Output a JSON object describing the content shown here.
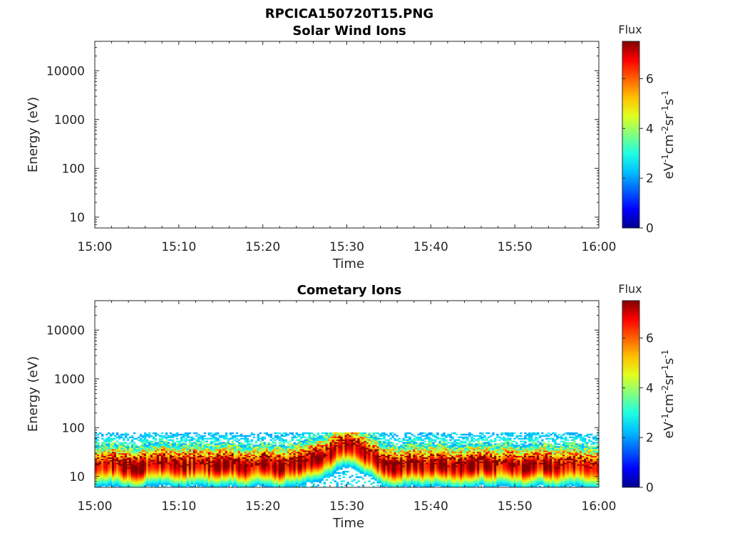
{
  "figure": {
    "title": "RPCICA150720T15.PNG"
  },
  "colormap": [
    "#00008f",
    "#0000ff",
    "#0060ff",
    "#00c0ff",
    "#20ffe0",
    "#80ff80",
    "#e0ff20",
    "#ffc000",
    "#ff6000",
    "#ff0000",
    "#800000"
  ],
  "chart_data": [
    {
      "type": "heatmap",
      "title": "Solar Wind Ions",
      "xlabel": "Time",
      "ylabel": "Energy (eV)",
      "x_ticks": [
        "15:00",
        "15:10",
        "15:20",
        "15:30",
        "15:40",
        "15:50",
        "16:00"
      ],
      "xlim": [
        "15:00",
        "16:00"
      ],
      "y_ticks": [
        "10",
        "100",
        "1000",
        "10000"
      ],
      "y_tick_values": [
        10,
        100,
        1000,
        10000
      ],
      "ylim": [
        6,
        40000
      ],
      "y_scale": "log",
      "colorbar": {
        "title": "Flux",
        "label_base": "eV",
        "label_exps": [
          "-1",
          "cm",
          "-2",
          "sr",
          "-1",
          "s",
          "-1"
        ],
        "ticks": [
          "0",
          "2",
          "4",
          "6"
        ],
        "range": [
          0,
          7.5
        ]
      },
      "data": "empty"
    },
    {
      "type": "heatmap",
      "title": "Cometary Ions",
      "xlabel": "Time",
      "ylabel": "Energy (eV)",
      "x_ticks": [
        "15:00",
        "15:10",
        "15:20",
        "15:30",
        "15:40",
        "15:50",
        "16:00"
      ],
      "xlim": [
        "15:00",
        "16:00"
      ],
      "y_ticks": [
        "10",
        "100",
        "1000",
        "10000"
      ],
      "y_tick_values": [
        10,
        100,
        1000,
        10000
      ],
      "ylim": [
        6,
        40000
      ],
      "y_scale": "log",
      "colorbar": {
        "title": "Flux",
        "label_base": "eV",
        "label_exps": [
          "-1",
          "cm",
          "-2",
          "sr",
          "-1",
          "s",
          "-1"
        ],
        "ticks": [
          "0",
          "2",
          "4",
          "6"
        ],
        "range": [
          0,
          7.5
        ]
      },
      "band": {
        "upper_energy_eV": 80,
        "lower_energy_eV": 6,
        "peak_energy_eV_by_minute": [
          16,
          17,
          18,
          16,
          15,
          14,
          17,
          18,
          19,
          17,
          16,
          17,
          18,
          17,
          16,
          17,
          18,
          16,
          15,
          17,
          18,
          16,
          15,
          17,
          18,
          20,
          22,
          24,
          30,
          40,
          45,
          38,
          30,
          25,
          18,
          16,
          15,
          17,
          18,
          16,
          17,
          18,
          16,
          15,
          16,
          17,
          18,
          16,
          17,
          18,
          16,
          15,
          17,
          18,
          16,
          15,
          17,
          18,
          16,
          15
        ],
        "peak_flux": 7.0
      }
    }
  ]
}
